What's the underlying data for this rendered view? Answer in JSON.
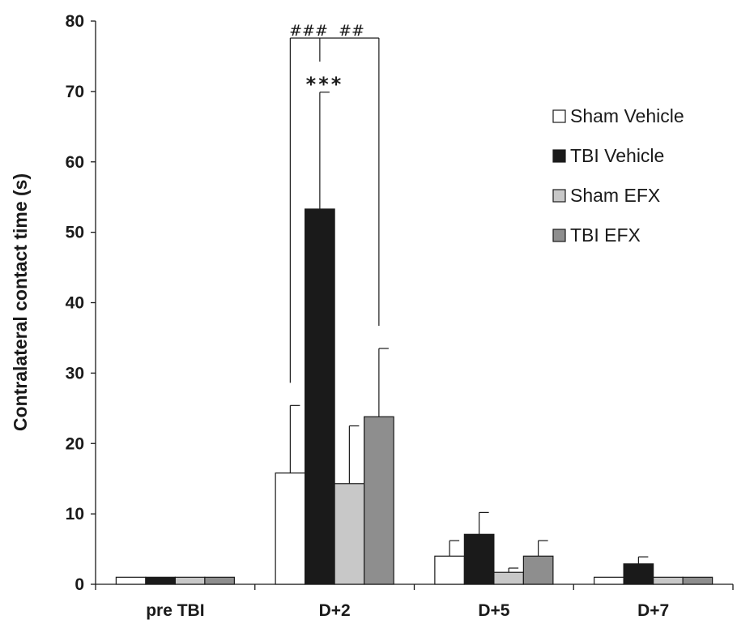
{
  "chart_data": {
    "type": "bar",
    "title": "",
    "xlabel": "",
    "ylabel": "Contralateral contact time (s)",
    "ylim": [
      0,
      80
    ],
    "yticks": [
      0,
      10,
      20,
      30,
      40,
      50,
      60,
      70,
      80
    ],
    "categories": [
      "pre TBI",
      "D+2",
      "D+5",
      "D+7"
    ],
    "series": [
      {
        "name": "Sham Vehicle",
        "color": "#ffffff",
        "values": [
          1,
          15.8,
          4.0,
          1.0
        ],
        "errors": [
          0,
          9.6,
          2.2,
          0
        ]
      },
      {
        "name": "TBI Vehicle",
        "color": "#1a1a1a",
        "values": [
          1,
          53.3,
          7.1,
          2.9
        ],
        "errors": [
          0,
          16.6,
          3.1,
          1.0
        ]
      },
      {
        "name": "Sham EFX",
        "color": "#c8c8c8",
        "values": [
          1,
          14.3,
          1.7,
          1.0
        ],
        "errors": [
          0,
          8.2,
          0.6,
          0
        ]
      },
      {
        "name": "TBI EFX",
        "color": "#8e8e8e",
        "values": [
          1,
          23.8,
          4.0,
          1.0
        ],
        "errors": [
          0,
          9.7,
          2.2,
          0
        ]
      }
    ],
    "legend_position": "right",
    "grid": false,
    "annotations": {
      "stars": "***",
      "hash_left": "###",
      "hash_right": "##"
    }
  }
}
